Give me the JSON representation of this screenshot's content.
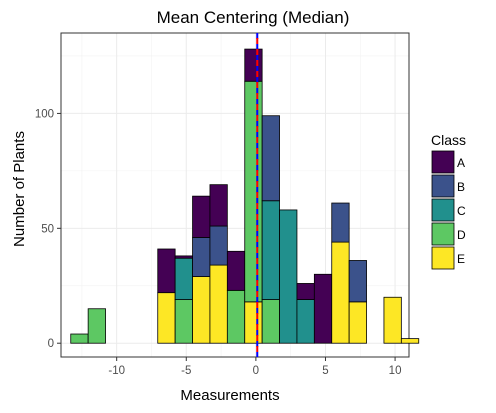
{
  "chart_data": {
    "type": "bar",
    "subtype": "stacked-histogram",
    "title": "Mean Centering (Median)",
    "xlabel": "Measurements",
    "ylabel": "Number of Plants",
    "xlim": [
      -14,
      11
    ],
    "ylim": [
      -6,
      135
    ],
    "x_ticks": [
      -10,
      -5,
      0,
      5,
      10
    ],
    "y_ticks": [
      0,
      50,
      100
    ],
    "grid": true,
    "reference_line": {
      "x": 0.1,
      "style": "dashed",
      "colors": [
        "#0000ff",
        "#ff0000"
      ]
    },
    "bin_edges": [
      -13.3,
      -12.05,
      -10.8,
      -9.55,
      -8.3,
      -7.05,
      -5.8,
      -4.55,
      -3.3,
      -2.05,
      -0.8,
      0.45,
      1.7,
      2.95,
      4.2,
      5.45,
      6.7,
      7.95,
      9.2,
      10.45,
      11.7
    ],
    "classes": [
      "A",
      "B",
      "C",
      "D",
      "E"
    ],
    "colors": [
      "#440154",
      "#3b528b",
      "#21908d",
      "#5dc863",
      "#fde725"
    ],
    "series": [
      {
        "name": "A",
        "values": [
          0,
          0,
          0,
          0,
          0,
          19,
          1,
          18,
          18,
          17,
          14,
          0,
          0,
          7,
          30,
          0,
          0,
          0,
          0,
          0
        ]
      },
      {
        "name": "B",
        "values": [
          0,
          0,
          0,
          0,
          0,
          0,
          0,
          17,
          17,
          0,
          0,
          37,
          0,
          0,
          0,
          17,
          18,
          0,
          0,
          0
        ]
      },
      {
        "name": "C",
        "values": [
          0,
          0,
          0,
          0,
          0,
          0,
          18,
          0,
          0,
          0,
          0,
          43,
          58,
          19,
          0,
          0,
          0,
          0,
          0,
          0
        ]
      },
      {
        "name": "D",
        "values": [
          4,
          15,
          0,
          0,
          0,
          0,
          19,
          0,
          0,
          23,
          96,
          19,
          0,
          0,
          0,
          0,
          0,
          0,
          0,
          0
        ]
      },
      {
        "name": "E",
        "values": [
          0,
          0,
          0,
          0,
          0,
          22,
          0,
          29,
          34,
          0,
          18,
          0,
          0,
          0,
          0,
          44,
          18,
          0,
          20,
          2
        ]
      }
    ],
    "legend": {
      "title": "Class",
      "position": "right"
    }
  }
}
